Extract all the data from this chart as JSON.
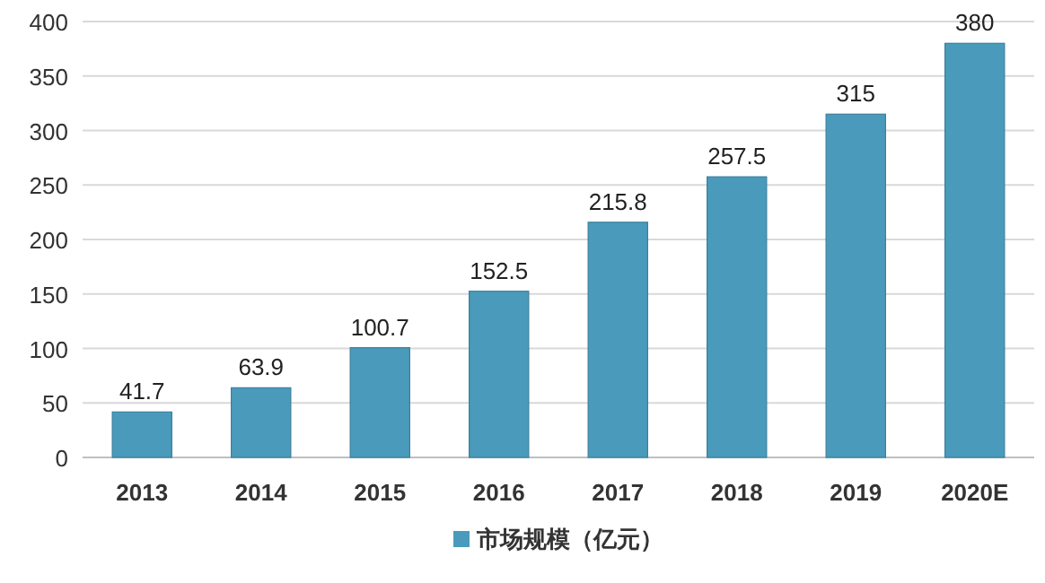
{
  "chart_data": {
    "type": "bar",
    "categories": [
      "2013",
      "2014",
      "2015",
      "2016",
      "2017",
      "2018",
      "2019",
      "2020E"
    ],
    "series": [
      {
        "name": "市场规模（亿元）",
        "color": "#4a9bbb",
        "values": [
          41.7,
          63.9,
          100.7,
          152.5,
          215.8,
          257.5,
          315,
          380
        ]
      }
    ],
    "ylim": [
      0,
      400
    ],
    "yticks": [
      0,
      50,
      100,
      150,
      200,
      250,
      300,
      350,
      400
    ],
    "grid": "y",
    "legend": "bottom",
    "data_labels": true
  }
}
